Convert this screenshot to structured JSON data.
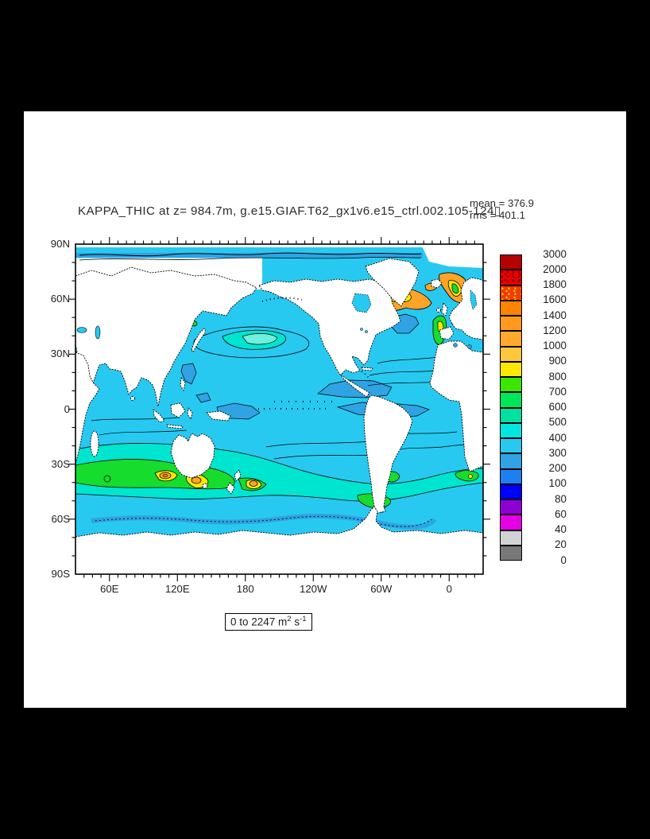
{
  "window": {
    "background": "#000000",
    "page_background": "#ffffff"
  },
  "title": "KAPPA_THIC at z= 984.7m, g.e15.GIAF.T62_gx1v6.e15_ctrl.002.105-124▯",
  "stats": {
    "mean_label": "mean = 376.9",
    "rms_label": "rms = 401.1"
  },
  "axes": {
    "y_tick_labels": [
      "90N",
      "60N",
      "30N",
      "0",
      "30S",
      "60S",
      "90S"
    ],
    "x_tick_labels": [
      "60E",
      "120E",
      "180",
      "120W",
      "60W",
      "0"
    ]
  },
  "units_box": {
    "prefix": "0 to 2247 m",
    "sup1": "2",
    "mid": " s",
    "sup2": "-1"
  },
  "colorbar": {
    "labels": [
      "3000",
      "2000",
      "1800",
      "1600",
      "1400",
      "1200",
      "1000",
      "900",
      "800",
      "700",
      "600",
      "500",
      "400",
      "300",
      "200",
      "100",
      "80",
      "60",
      "40",
      "20",
      "0"
    ],
    "boxes": [
      {
        "range": "2000-3000",
        "color": "#b50000",
        "stipple": "none"
      },
      {
        "range": "1800-2000",
        "color": "#e60000",
        "stipple": "dark"
      },
      {
        "range": "1600-1800",
        "color": "#f23c00",
        "stipple": "yellow"
      },
      {
        "range": "1400-1600",
        "color": "#ff8400",
        "stipple": "none"
      },
      {
        "range": "1200-1400",
        "color": "#ff9a1e",
        "stipple": "none"
      },
      {
        "range": "1000-1200",
        "color": "#ffaa2e",
        "stipple": "none"
      },
      {
        "range": "900-1000",
        "color": "#ffc83c",
        "stipple": "none"
      },
      {
        "range": "800-900",
        "color": "#ffe800",
        "stipple": "none"
      },
      {
        "range": "700-800",
        "color": "#3ce600",
        "stipple": "none"
      },
      {
        "range": "600-700",
        "color": "#00e65a",
        "stipple": "none"
      },
      {
        "range": "500-600",
        "color": "#00e0a0",
        "stipple": "none"
      },
      {
        "range": "400-500",
        "color": "#00e6e0",
        "stipple": "none"
      },
      {
        "range": "300-400",
        "color": "#28c9f0",
        "stipple": "none"
      },
      {
        "range": "200-300",
        "color": "#2fa3e3",
        "stipple": "none"
      },
      {
        "range": "100-200",
        "color": "#1e7ff0",
        "stipple": "none"
      },
      {
        "range": "80-100",
        "color": "#0000ff",
        "stipple": "none"
      },
      {
        "range": "60-80",
        "color": "#8c00d2",
        "stipple": "none"
      },
      {
        "range": "40-60",
        "color": "#e600e6",
        "stipple": "none"
      },
      {
        "range": "20-40",
        "color": "#d2d2d2",
        "stipple": "none"
      },
      {
        "range": "0-20",
        "color": "#787878",
        "stipple": "none"
      }
    ]
  },
  "chart_data": {
    "type": "heatmap",
    "subtype": "filled-contour-world-map",
    "title": "KAPPA_THIC at z= 984.7m, g.e15.GIAF.T62_gx1v6.e15_ctrl.002.105-124",
    "variable": "KAPPA_THIC",
    "depth_level": "984.7m",
    "case": "g.e15.GIAF.T62_gx1v6.e15_ctrl.002.105-124",
    "mean": 376.9,
    "rms": 401.1,
    "data_range_label": "0 to 2247 m2 s-1",
    "units": "m2 s-1",
    "contour_levels": [
      0,
      20,
      40,
      60,
      80,
      100,
      200,
      300,
      400,
      500,
      600,
      700,
      800,
      900,
      1000,
      1200,
      1400,
      1600,
      1800,
      2000,
      3000
    ],
    "projection": "cylindrical-equidistant",
    "lon_range_deg_east": [
      30,
      390
    ],
    "lat_range": [
      -90,
      90
    ],
    "x_ticks": [
      "60E",
      "120E",
      "180",
      "120W",
      "60W",
      "0"
    ],
    "y_ticks": [
      "90N",
      "60N",
      "30N",
      "0",
      "30S",
      "60S",
      "90S"
    ],
    "legend_position": "right",
    "grid": false,
    "notes": "Ocean mostly 300-400 band (cyan); elevated green/yellow/orange band along 40-55S; orange/red maxima near S-E Greenland, Norwegian Sea, tip of South America; darker blue (200-300) patches in equatorial Pacific, Bay of Bengal, subpolar N Atlantic; land masked white"
  }
}
